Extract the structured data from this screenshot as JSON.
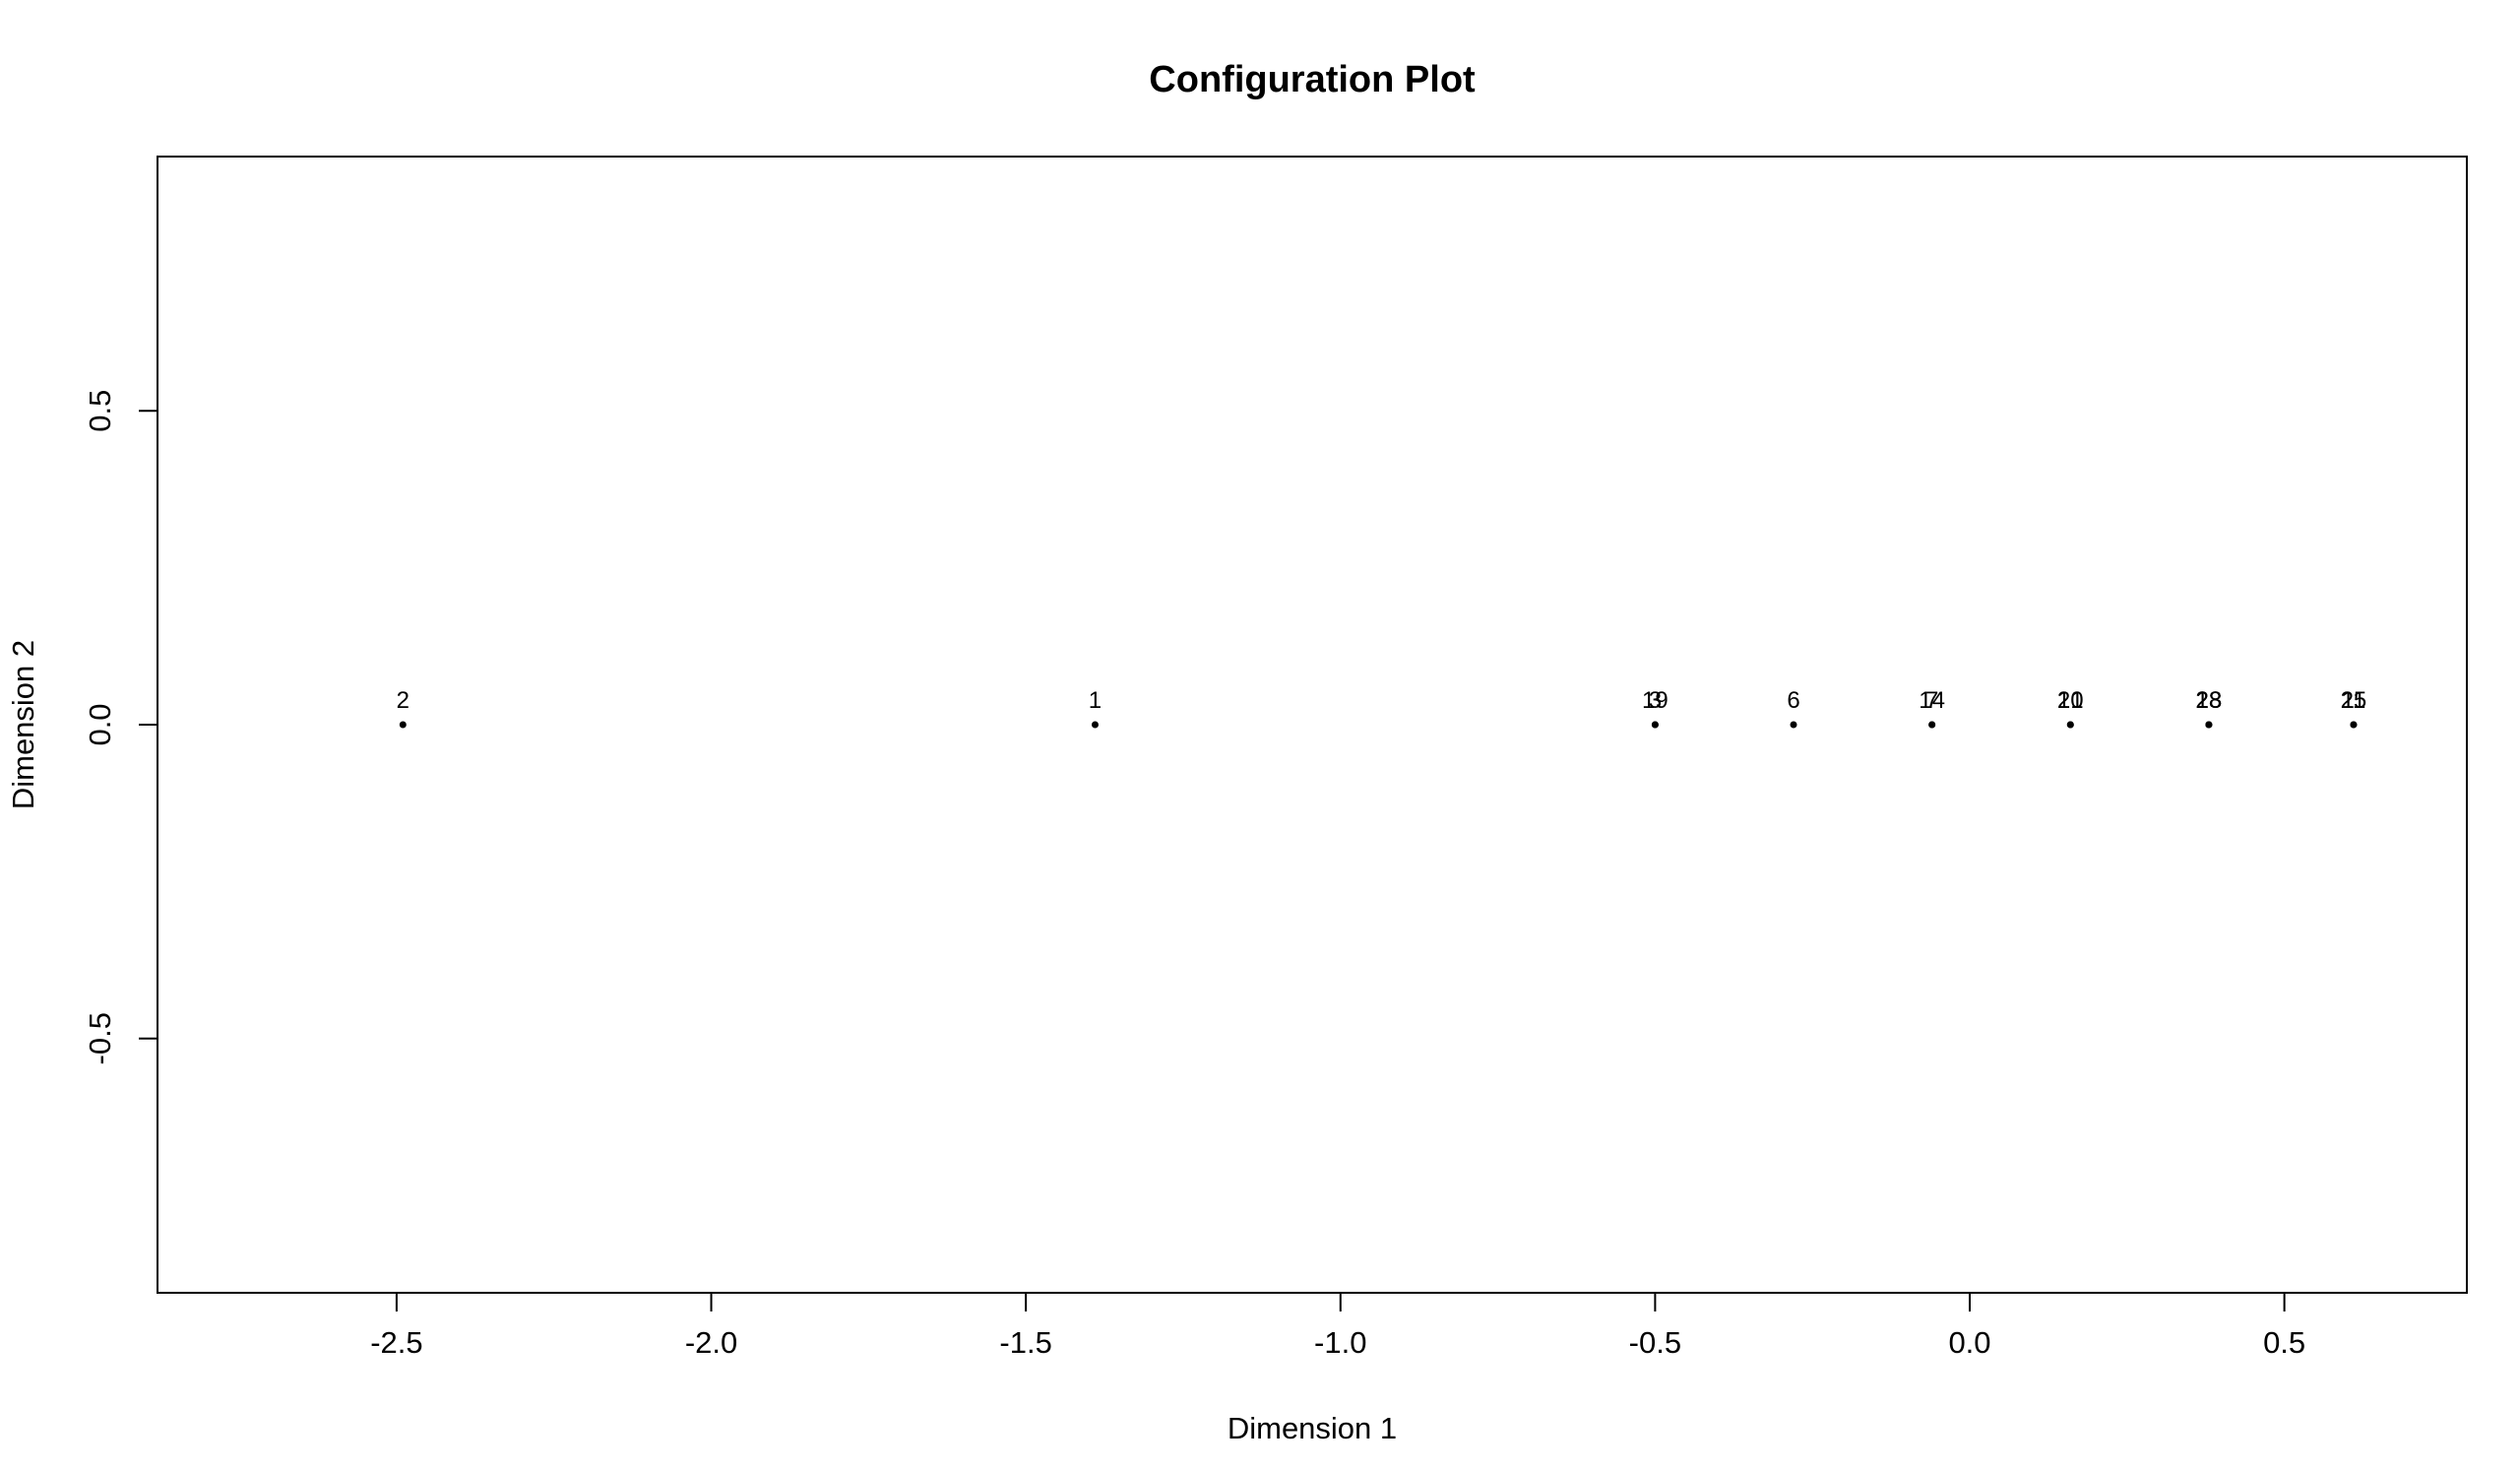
{
  "chart_data": {
    "type": "scatter",
    "title": "Configuration Plot",
    "xlabel": "Dimension 1",
    "ylabel": "Dimension 2",
    "xlim": [
      -2.88,
      0.79
    ],
    "ylim": [
      -0.905,
      0.905
    ],
    "xticks": [
      -2.5,
      -2.0,
      -1.5,
      -1.0,
      -0.5,
      0.0,
      0.5
    ],
    "xtick_labels": [
      "-2.5",
      "-2.0",
      "-1.5",
      "-1.0",
      "-0.5",
      "0.0",
      "0.5"
    ],
    "yticks": [
      -0.5,
      0.0,
      0.5
    ],
    "ytick_labels": [
      "-0.5",
      "0.0",
      "0.5"
    ],
    "grid": false,
    "points": [
      {
        "label": "2",
        "x": -2.49,
        "y": 0.0
      },
      {
        "label": "1",
        "x": -1.39,
        "y": 0.0
      },
      {
        "label": "19",
        "x": -0.5,
        "y": 0.0
      },
      {
        "label": "3",
        "x": -0.5,
        "y": 0.0
      },
      {
        "label": "6",
        "x": -0.28,
        "y": 0.0
      },
      {
        "label": "14",
        "x": -0.06,
        "y": 0.0
      },
      {
        "label": "7",
        "x": -0.06,
        "y": 0.0
      },
      {
        "label": "21",
        "x": 0.16,
        "y": 0.0
      },
      {
        "label": "10",
        "x": 0.16,
        "y": 0.0
      },
      {
        "label": "28",
        "x": 0.38,
        "y": 0.0
      },
      {
        "label": "18",
        "x": 0.38,
        "y": 0.0
      },
      {
        "label": "23",
        "x": 0.38,
        "y": 0.0
      },
      {
        "label": "25",
        "x": 0.61,
        "y": 0.0
      },
      {
        "label": "11",
        "x": 0.61,
        "y": 0.0
      }
    ]
  }
}
